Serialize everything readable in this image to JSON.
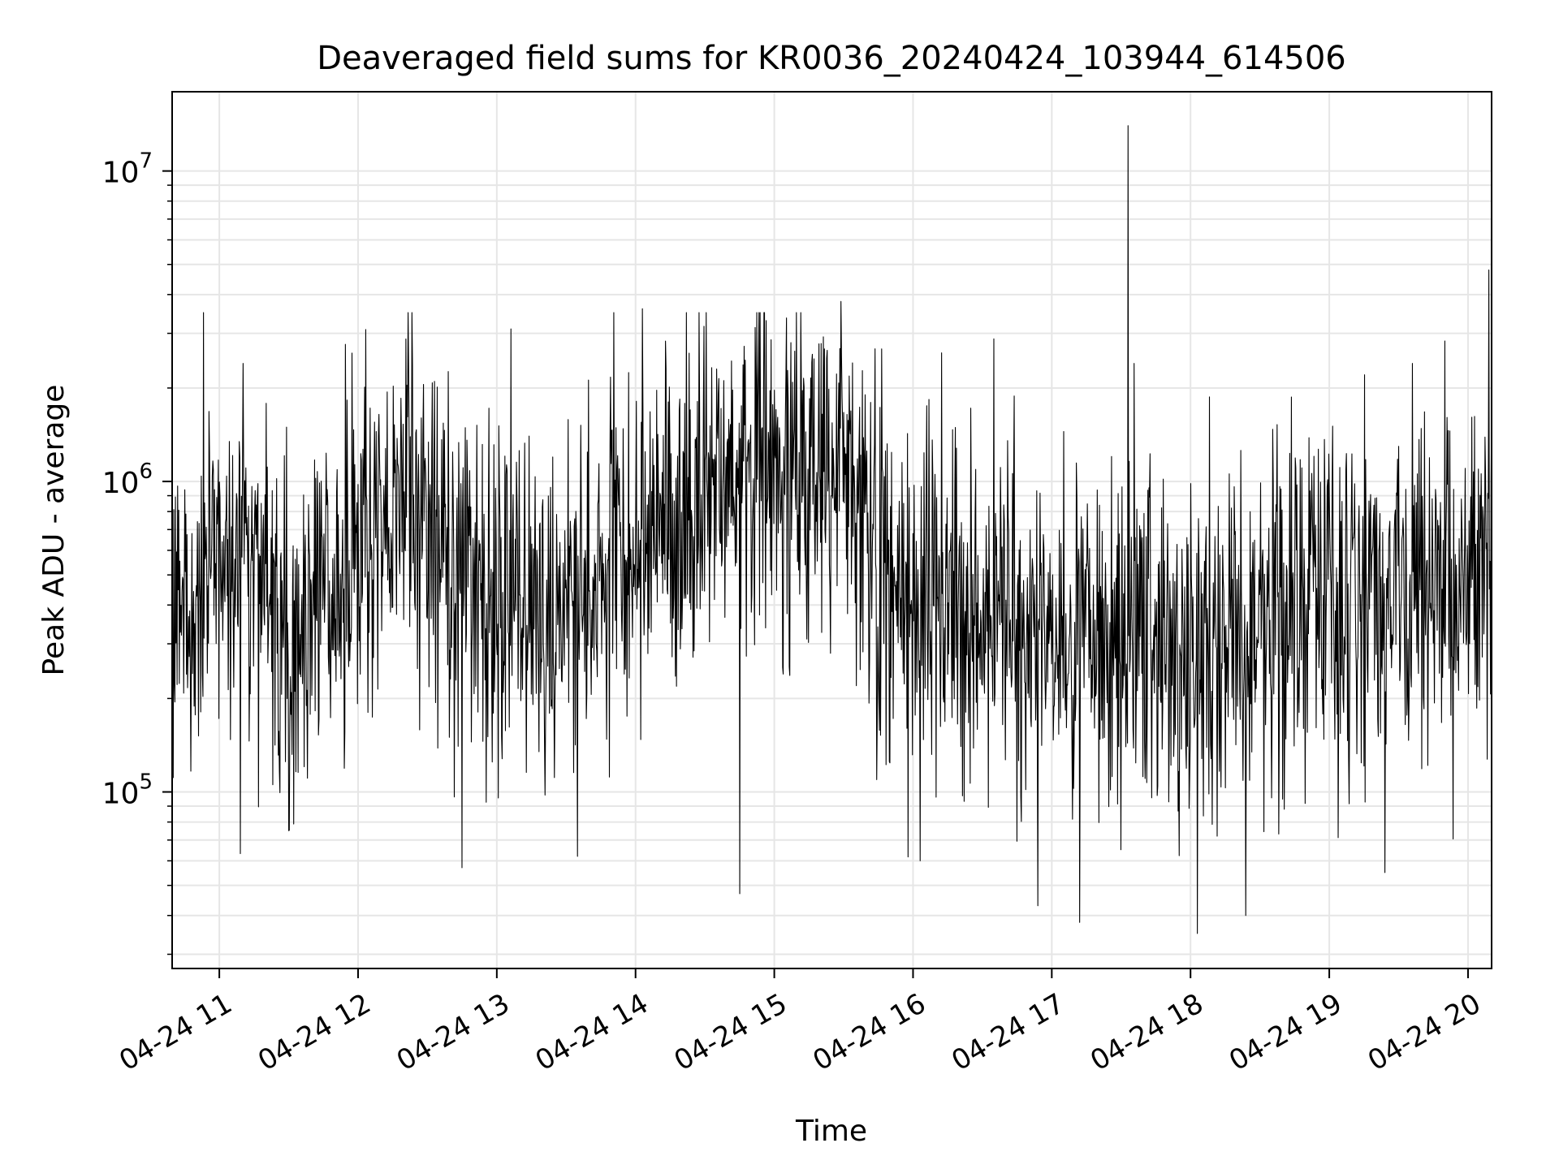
{
  "chart_data": {
    "type": "line",
    "title": "Deaveraged field sums for KR0036_20240424_103944_614506",
    "xlabel": "Time",
    "ylabel": "Peak ADU - average",
    "yscale": "log",
    "ylim": [
      27000,
      18000000
    ],
    "xlim_hours": [
      10.66,
      20.17
    ],
    "grid": true,
    "grid_color": "#e6e6e6",
    "line_color": "#000000",
    "x_ticks": [
      {
        "hour": 11,
        "label": "04-24 11"
      },
      {
        "hour": 12,
        "label": "04-24 12"
      },
      {
        "hour": 13,
        "label": "04-24 13"
      },
      {
        "hour": 14,
        "label": "04-24 14"
      },
      {
        "hour": 15,
        "label": "04-24 15"
      },
      {
        "hour": 16,
        "label": "04-24 16"
      },
      {
        "hour": 17,
        "label": "04-24 17"
      },
      {
        "hour": 18,
        "label": "04-24 18"
      },
      {
        "hour": 19,
        "label": "04-24 19"
      },
      {
        "hour": 20,
        "label": "04-24 20"
      }
    ],
    "y_ticks": [
      {
        "value": 100000,
        "base": "10",
        "exp": "5"
      },
      {
        "value": 1000000,
        "base": "10",
        "exp": "6"
      },
      {
        "value": 10000000,
        "base": "10",
        "exp": "7"
      }
    ],
    "series_level_profile": [
      {
        "hour": 10.66,
        "value": 450000
      },
      {
        "hour": 11.0,
        "value": 500000
      },
      {
        "hour": 11.2,
        "value": 700000
      },
      {
        "hour": 11.5,
        "value": 280000
      },
      {
        "hour": 11.8,
        "value": 450000
      },
      {
        "hour": 12.0,
        "value": 600000
      },
      {
        "hour": 12.3,
        "value": 800000
      },
      {
        "hour": 12.6,
        "value": 600000
      },
      {
        "hour": 12.9,
        "value": 400000
      },
      {
        "hour": 13.3,
        "value": 350000
      },
      {
        "hour": 13.6,
        "value": 450000
      },
      {
        "hour": 14.0,
        "value": 650000
      },
      {
        "hour": 14.5,
        "value": 900000
      },
      {
        "hour": 15.0,
        "value": 1100000
      },
      {
        "hour": 15.5,
        "value": 1200000
      },
      {
        "hour": 15.8,
        "value": 450000
      },
      {
        "hour": 16.2,
        "value": 380000
      },
      {
        "hour": 16.8,
        "value": 330000
      },
      {
        "hour": 17.4,
        "value": 300000
      },
      {
        "hour": 18.0,
        "value": 280000
      },
      {
        "hour": 18.5,
        "value": 330000
      },
      {
        "hour": 19.0,
        "value": 420000
      },
      {
        "hour": 19.5,
        "value": 480000
      },
      {
        "hour": 20.17,
        "value": 500000
      }
    ],
    "series_noise_spread_decades": 0.55,
    "series_point_count": 2400,
    "series_extremes": [
      {
        "hour": 17.55,
        "value": 14000000
      },
      {
        "hour": 20.15,
        "value": 4800000
      },
      {
        "hour": 15.48,
        "value": 3800000
      },
      {
        "hour": 14.05,
        "value": 3600000
      },
      {
        "hour": 14.75,
        "value": 47000
      },
      {
        "hour": 18.05,
        "value": 35000
      },
      {
        "hour": 17.2,
        "value": 38000
      },
      {
        "hour": 16.9,
        "value": 43000
      },
      {
        "hour": 11.5,
        "value": 75000
      },
      {
        "hour": 12.75,
        "value": 57000
      },
      {
        "hour": 13.58,
        "value": 62000
      },
      {
        "hour": 13.1,
        "value": 3100000
      },
      {
        "hour": 11.17,
        "value": 2400000
      },
      {
        "hour": 19.6,
        "value": 2400000
      },
      {
        "hour": 16.05,
        "value": 60000
      },
      {
        "hour": 19.4,
        "value": 55000
      }
    ]
  }
}
